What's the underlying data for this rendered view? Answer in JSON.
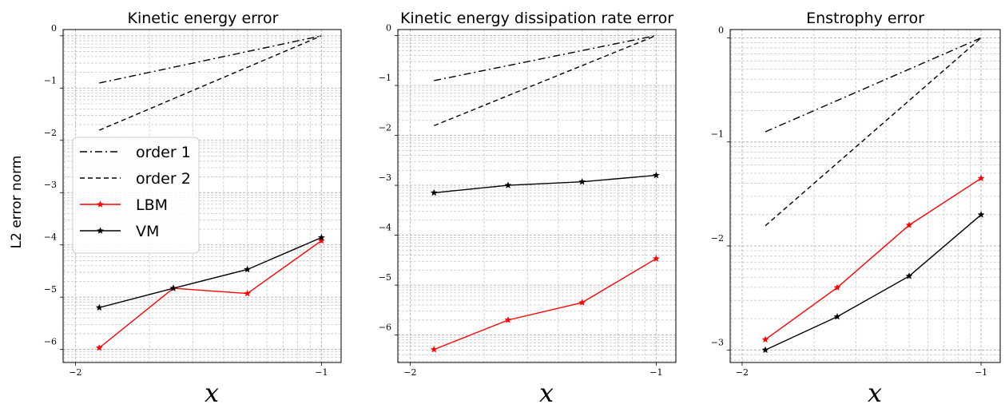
{
  "figure": {
    "ylabel": "L2 error norm"
  },
  "legend": {
    "placement": "center-left of first panel",
    "items": [
      {
        "label": "order 1",
        "color": "#000000",
        "dash": "dashdot",
        "marker": "none"
      },
      {
        "label": "order 2",
        "color": "#000000",
        "dash": "dashed",
        "marker": "none"
      },
      {
        "label": "LBM",
        "color": "#ff0000",
        "dash": "solid",
        "marker": "star"
      },
      {
        "label": "VM",
        "color": "#000000",
        "dash": "solid",
        "marker": "star"
      }
    ]
  },
  "chart_data": [
    {
      "type": "line",
      "title": "Kinetic energy error",
      "xlabel": "x",
      "ylabel": "L2 error norm",
      "xlim": [
        -2.05,
        -0.92
      ],
      "ylim": [
        -6.25,
        0.12
      ],
      "xticks": [
        -2,
        -1
      ],
      "yticks": [
        0,
        -1,
        -2,
        -3,
        -4,
        -5,
        -6
      ],
      "grid": true,
      "series": [
        {
          "name": "order 1",
          "color": "#000000",
          "dash": "dashdot",
          "x": [
            -1.903,
            -1.0
          ],
          "y": [
            -0.903,
            0.0
          ]
        },
        {
          "name": "order 2",
          "color": "#000000",
          "dash": "dashed",
          "x": [
            -1.903,
            -1.0
          ],
          "y": [
            -1.806,
            0.0
          ]
        },
        {
          "name": "LBM",
          "color": "#ff0000",
          "dash": "solid",
          "marker": "star",
          "x": [
            -1.903,
            -1.602,
            -1.301,
            -1.0
          ],
          "y": [
            -5.97,
            -4.83,
            -4.93,
            -3.92
          ]
        },
        {
          "name": "VM",
          "color": "#000000",
          "dash": "solid",
          "marker": "star",
          "x": [
            -1.903,
            -1.602,
            -1.301,
            -1.0
          ],
          "y": [
            -5.2,
            -4.83,
            -4.47,
            -3.86
          ]
        }
      ]
    },
    {
      "type": "line",
      "title": "Kinetic energy dissipation rate error",
      "xlabel": "x",
      "ylabel": "",
      "xlim": [
        -2.05,
        -0.92
      ],
      "ylim": [
        -6.55,
        0.12
      ],
      "xticks": [
        -2,
        -1
      ],
      "yticks": [
        0,
        -1,
        -2,
        -3,
        -4,
        -5,
        -6
      ],
      "grid": true,
      "series": [
        {
          "name": "order 1",
          "color": "#000000",
          "dash": "dashdot",
          "x": [
            -1.903,
            -1.0
          ],
          "y": [
            -0.903,
            0.0
          ]
        },
        {
          "name": "order 2",
          "color": "#000000",
          "dash": "dashed",
          "x": [
            -1.903,
            -1.0
          ],
          "y": [
            -1.806,
            0.0
          ]
        },
        {
          "name": "LBM",
          "color": "#ff0000",
          "dash": "solid",
          "marker": "star",
          "x": [
            -1.903,
            -1.602,
            -1.301,
            -1.0
          ],
          "y": [
            -6.29,
            -5.7,
            -5.35,
            -4.47
          ]
        },
        {
          "name": "VM",
          "color": "#000000",
          "dash": "solid",
          "marker": "star",
          "x": [
            -1.903,
            -1.602,
            -1.301,
            -1.0
          ],
          "y": [
            -3.15,
            -3.0,
            -2.93,
            -2.8
          ]
        }
      ]
    },
    {
      "type": "line",
      "title": "Enstrophy error",
      "xlabel": "x",
      "ylabel": "",
      "xlim": [
        -2.05,
        -0.92
      ],
      "ylim": [
        -3.12,
        0.08
      ],
      "xticks": [
        -2,
        -1
      ],
      "yticks": [
        0,
        -1,
        -2,
        -3
      ],
      "grid": true,
      "series": [
        {
          "name": "order 1",
          "color": "#000000",
          "dash": "dashdot",
          "x": [
            -1.903,
            -1.0
          ],
          "y": [
            -0.903,
            0.0
          ]
        },
        {
          "name": "order 2",
          "color": "#000000",
          "dash": "dashed",
          "x": [
            -1.903,
            -1.0
          ],
          "y": [
            -1.806,
            0.0
          ]
        },
        {
          "name": "LBM",
          "color": "#ff0000",
          "dash": "solid",
          "marker": "star",
          "x": [
            -1.903,
            -1.602,
            -1.301,
            -1.0
          ],
          "y": [
            -2.9,
            -2.4,
            -1.8,
            -1.35
          ]
        },
        {
          "name": "VM",
          "color": "#000000",
          "dash": "solid",
          "marker": "star",
          "x": [
            -1.903,
            -1.602,
            -1.301,
            -1.0
          ],
          "y": [
            -3.0,
            -2.68,
            -2.29,
            -1.7
          ]
        }
      ]
    }
  ]
}
